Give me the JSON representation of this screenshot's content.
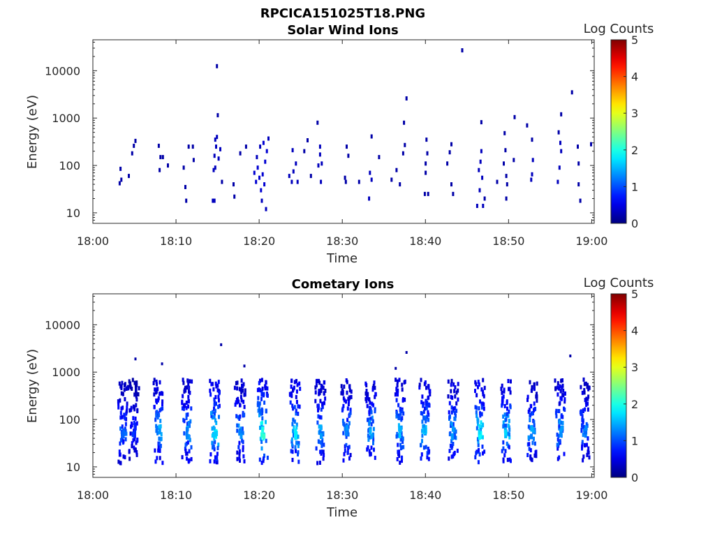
{
  "figure": {
    "title": "RPCICA151025T18.PNG"
  },
  "chart_data": [
    {
      "type": "heatmap",
      "title": "Solar Wind Ions",
      "xlabel": "Time",
      "ylabel": "Energy (eV)",
      "x_scale": "time",
      "y_scale": "log",
      "xlim": [
        "18:00",
        "19:00"
      ],
      "ylim": [
        6,
        45000
      ],
      "x_ticks": [
        "18:00",
        "18:10",
        "18:20",
        "18:30",
        "18:40",
        "18:50",
        "19:00"
      ],
      "y_ticks": [
        "10",
        "100",
        "1000",
        "10000"
      ],
      "colorbar": {
        "label": "Log Counts",
        "min": 0,
        "max": 5,
        "ticks": [
          "0",
          "1",
          "2",
          "3",
          "4",
          "5"
        ],
        "colormap": "jet"
      },
      "points": [
        {
          "t": 3.2,
          "e": 85,
          "c": 0.2
        },
        {
          "t": 3.3,
          "e": 50,
          "c": 0.2
        },
        {
          "t": 3.1,
          "e": 42,
          "c": 0.2
        },
        {
          "t": 4.2,
          "e": 60,
          "c": 0.2
        },
        {
          "t": 4.6,
          "e": 180,
          "c": 0.2
        },
        {
          "t": 4.8,
          "e": 260,
          "c": 0.2
        },
        {
          "t": 5.0,
          "e": 330,
          "c": 0.2
        },
        {
          "t": 7.8,
          "e": 260,
          "c": 0.2
        },
        {
          "t": 8.0,
          "e": 150,
          "c": 0.2
        },
        {
          "t": 7.9,
          "e": 80,
          "c": 0.2
        },
        {
          "t": 8.3,
          "e": 150,
          "c": 0.2
        },
        {
          "t": 8.9,
          "e": 100,
          "c": 0.2
        },
        {
          "t": 10.8,
          "e": 90,
          "c": 0.2
        },
        {
          "t": 11.0,
          "e": 35,
          "c": 0.2
        },
        {
          "t": 11.1,
          "e": 18,
          "c": 0.2
        },
        {
          "t": 11.4,
          "e": 250,
          "c": 0.2
        },
        {
          "t": 11.9,
          "e": 250,
          "c": 0.2
        },
        {
          "t": 12.0,
          "e": 130,
          "c": 0.2
        },
        {
          "t": 14.3,
          "e": 18,
          "c": 0.3
        },
        {
          "t": 14.5,
          "e": 18,
          "c": 0.3
        },
        {
          "t": 14.4,
          "e": 80,
          "c": 0.3
        },
        {
          "t": 14.6,
          "e": 90,
          "c": 0.3
        },
        {
          "t": 14.5,
          "e": 160,
          "c": 0.3
        },
        {
          "t": 14.7,
          "e": 250,
          "c": 0.3
        },
        {
          "t": 14.6,
          "e": 350,
          "c": 0.3
        },
        {
          "t": 14.8,
          "e": 400,
          "c": 0.3
        },
        {
          "t": 15.0,
          "e": 140,
          "c": 0.3
        },
        {
          "t": 14.8,
          "e": 12500,
          "c": 0.2
        },
        {
          "t": 14.9,
          "e": 1150,
          "c": 0.2
        },
        {
          "t": 15.2,
          "e": 220,
          "c": 0.3
        },
        {
          "t": 15.4,
          "e": 45,
          "c": 0.2
        },
        {
          "t": 16.8,
          "e": 40,
          "c": 0.2
        },
        {
          "t": 16.9,
          "e": 22,
          "c": 0.2
        },
        {
          "t": 17.6,
          "e": 180,
          "c": 0.2
        },
        {
          "t": 18.3,
          "e": 250,
          "c": 0.2
        },
        {
          "t": 19.3,
          "e": 70,
          "c": 0.4
        },
        {
          "t": 19.5,
          "e": 45,
          "c": 0.4
        },
        {
          "t": 19.7,
          "e": 90,
          "c": 0.4
        },
        {
          "t": 19.9,
          "e": 55,
          "c": 0.4
        },
        {
          "t": 20.1,
          "e": 30,
          "c": 0.4
        },
        {
          "t": 20.3,
          "e": 65,
          "c": 0.4
        },
        {
          "t": 20.5,
          "e": 40,
          "c": 0.4
        },
        {
          "t": 20.6,
          "e": 120,
          "c": 0.4
        },
        {
          "t": 20.8,
          "e": 200,
          "c": 0.4
        },
        {
          "t": 20.4,
          "e": 300,
          "c": 0.4
        },
        {
          "t": 20.2,
          "e": 18,
          "c": 0.3
        },
        {
          "t": 20.7,
          "e": 12,
          "c": 0.3
        },
        {
          "t": 21.0,
          "e": 370,
          "c": 0.3
        },
        {
          "t": 19.6,
          "e": 150,
          "c": 0.3
        },
        {
          "t": 20.0,
          "e": 250,
          "c": 0.3
        },
        {
          "t": 23.5,
          "e": 60,
          "c": 0.3
        },
        {
          "t": 23.8,
          "e": 45,
          "c": 0.3
        },
        {
          "t": 24.0,
          "e": 75,
          "c": 0.3
        },
        {
          "t": 23.9,
          "e": 210,
          "c": 0.3
        },
        {
          "t": 24.3,
          "e": 110,
          "c": 0.3
        },
        {
          "t": 24.5,
          "e": 45,
          "c": 0.3
        },
        {
          "t": 25.3,
          "e": 200,
          "c": 0.2
        },
        {
          "t": 25.7,
          "e": 340,
          "c": 0.2
        },
        {
          "t": 26.1,
          "e": 60,
          "c": 0.2
        },
        {
          "t": 27.0,
          "e": 100,
          "c": 0.3
        },
        {
          "t": 27.2,
          "e": 170,
          "c": 0.3
        },
        {
          "t": 27.4,
          "e": 110,
          "c": 0.3
        },
        {
          "t": 27.2,
          "e": 250,
          "c": 0.3
        },
        {
          "t": 27.3,
          "e": 45,
          "c": 0.3
        },
        {
          "t": 26.9,
          "e": 800,
          "c": 0.2
        },
        {
          "t": 30.2,
          "e": 55,
          "c": 0.2
        },
        {
          "t": 30.3,
          "e": 45,
          "c": 0.2
        },
        {
          "t": 30.6,
          "e": 160,
          "c": 0.2
        },
        {
          "t": 30.4,
          "e": 250,
          "c": 0.2
        },
        {
          "t": 31.9,
          "e": 45,
          "c": 0.2
        },
        {
          "t": 33.2,
          "e": 70,
          "c": 0.3
        },
        {
          "t": 33.4,
          "e": 50,
          "c": 0.3
        },
        {
          "t": 33.1,
          "e": 20,
          "c": 0.3
        },
        {
          "t": 33.4,
          "e": 410,
          "c": 0.2
        },
        {
          "t": 34.3,
          "e": 150,
          "c": 0.2
        },
        {
          "t": 35.8,
          "e": 50,
          "c": 0.2
        },
        {
          "t": 36.4,
          "e": 80,
          "c": 0.2
        },
        {
          "t": 36.8,
          "e": 40,
          "c": 0.2
        },
        {
          "t": 37.2,
          "e": 180,
          "c": 0.2
        },
        {
          "t": 37.4,
          "e": 270,
          "c": 0.2
        },
        {
          "t": 37.3,
          "e": 800,
          "c": 0.2
        },
        {
          "t": 37.6,
          "e": 2600,
          "c": 0.2
        },
        {
          "t": 40.0,
          "e": 350,
          "c": 0.2
        },
        {
          "t": 40.1,
          "e": 180,
          "c": 0.2
        },
        {
          "t": 39.9,
          "e": 70,
          "c": 0.2
        },
        {
          "t": 39.8,
          "e": 25,
          "c": 0.2
        },
        {
          "t": 40.2,
          "e": 25,
          "c": 0.2
        },
        {
          "t": 39.9,
          "e": 110,
          "c": 0.2
        },
        {
          "t": 42.5,
          "e": 110,
          "c": 0.2
        },
        {
          "t": 42.8,
          "e": 190,
          "c": 0.2
        },
        {
          "t": 43.0,
          "e": 40,
          "c": 0.2
        },
        {
          "t": 43.2,
          "e": 25,
          "c": 0.2
        },
        {
          "t": 43.0,
          "e": 280,
          "c": 0.2
        },
        {
          "t": 44.3,
          "e": 27000,
          "c": 0.2
        },
        {
          "t": 46.3,
          "e": 80,
          "c": 0.3
        },
        {
          "t": 46.5,
          "e": 120,
          "c": 0.3
        },
        {
          "t": 46.7,
          "e": 55,
          "c": 0.3
        },
        {
          "t": 46.6,
          "e": 200,
          "c": 0.3
        },
        {
          "t": 46.4,
          "e": 30,
          "c": 0.3
        },
        {
          "t": 46.8,
          "e": 14,
          "c": 0.3
        },
        {
          "t": 46.1,
          "e": 14,
          "c": 0.3
        },
        {
          "t": 46.6,
          "e": 820,
          "c": 0.2
        },
        {
          "t": 47.0,
          "e": 20,
          "c": 0.2
        },
        {
          "t": 48.5,
          "e": 45,
          "c": 0.2
        },
        {
          "t": 49.3,
          "e": 110,
          "c": 0.2
        },
        {
          "t": 49.6,
          "e": 60,
          "c": 0.2
        },
        {
          "t": 49.5,
          "e": 210,
          "c": 0.2
        },
        {
          "t": 49.7,
          "e": 40,
          "c": 0.2
        },
        {
          "t": 49.6,
          "e": 20,
          "c": 0.2
        },
        {
          "t": 49.4,
          "e": 480,
          "c": 0.2
        },
        {
          "t": 50.6,
          "e": 1050,
          "c": 0.2
        },
        {
          "t": 50.5,
          "e": 130,
          "c": 0.2
        },
        {
          "t": 52.1,
          "e": 700,
          "c": 0.2
        },
        {
          "t": 52.7,
          "e": 65,
          "c": 0.3
        },
        {
          "t": 52.6,
          "e": 50,
          "c": 0.3
        },
        {
          "t": 52.8,
          "e": 130,
          "c": 0.3
        },
        {
          "t": 52.7,
          "e": 350,
          "c": 0.2
        },
        {
          "t": 55.8,
          "e": 45,
          "c": 0.3
        },
        {
          "t": 56.0,
          "e": 90,
          "c": 0.3
        },
        {
          "t": 56.2,
          "e": 200,
          "c": 0.3
        },
        {
          "t": 56.1,
          "e": 300,
          "c": 0.3
        },
        {
          "t": 55.9,
          "e": 500,
          "c": 0.2
        },
        {
          "t": 56.2,
          "e": 1200,
          "c": 0.2
        },
        {
          "t": 57.5,
          "e": 3500,
          "c": 0.2
        },
        {
          "t": 58.2,
          "e": 250,
          "c": 0.2
        },
        {
          "t": 58.3,
          "e": 110,
          "c": 0.2
        },
        {
          "t": 58.3,
          "e": 40,
          "c": 0.2
        },
        {
          "t": 58.5,
          "e": 18,
          "c": 0.2
        },
        {
          "t": 59.8,
          "e": 280,
          "c": 0.2
        }
      ]
    },
    {
      "type": "heatmap",
      "title": "Cometary Ions",
      "xlabel": "Time",
      "ylabel": "Energy (eV)",
      "x_scale": "time",
      "y_scale": "log",
      "xlim": [
        "18:00",
        "19:00"
      ],
      "ylim": [
        6,
        45000
      ],
      "x_ticks": [
        "18:00",
        "18:10",
        "18:20",
        "18:30",
        "18:40",
        "18:50",
        "19:00"
      ],
      "y_ticks": [
        "10",
        "100",
        "1000",
        "10000"
      ],
      "colorbar": {
        "label": "Log Counts",
        "min": 0,
        "max": 5,
        "ticks": [
          "0",
          "1",
          "2",
          "3",
          "4",
          "5"
        ],
        "colormap": "jet"
      },
      "bursts": [
        {
          "t": 3.5,
          "peak": 1.2
        },
        {
          "t": 4.8,
          "peak": 0.9
        },
        {
          "t": 7.8,
          "peak": 1.6
        },
        {
          "t": 11.2,
          "peak": 1.5
        },
        {
          "t": 14.6,
          "peak": 2.0
        },
        {
          "t": 17.6,
          "peak": 1.4
        },
        {
          "t": 20.3,
          "peak": 2.2
        },
        {
          "t": 24.2,
          "peak": 1.9
        },
        {
          "t": 27.2,
          "peak": 1.5
        },
        {
          "t": 30.4,
          "peak": 1.4
        },
        {
          "t": 33.3,
          "peak": 1.6
        },
        {
          "t": 36.8,
          "peak": 1.7
        },
        {
          "t": 39.8,
          "peak": 1.7
        },
        {
          "t": 43.2,
          "peak": 1.5
        },
        {
          "t": 46.4,
          "peak": 1.9
        },
        {
          "t": 49.6,
          "peak": 1.8
        },
        {
          "t": 52.7,
          "peak": 1.5
        },
        {
          "t": 56.1,
          "peak": 1.5
        },
        {
          "t": 59.0,
          "peak": 1.3
        }
      ],
      "outliers": [
        {
          "t": 15.3,
          "e": 3800,
          "c": 0.2
        },
        {
          "t": 37.6,
          "e": 2600,
          "c": 0.2
        },
        {
          "t": 57.3,
          "e": 2200,
          "c": 0.2
        },
        {
          "t": 5.0,
          "e": 1900,
          "c": 0.2
        },
        {
          "t": 8.2,
          "e": 1500,
          "c": 0.2
        },
        {
          "t": 18.1,
          "e": 1350,
          "c": 0.2
        },
        {
          "t": 36.3,
          "e": 1200,
          "c": 0.2
        }
      ]
    }
  ]
}
